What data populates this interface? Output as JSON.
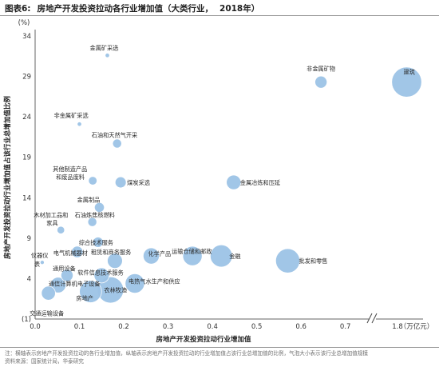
{
  "figure": {
    "label": "图表6:",
    "title": "房地产开发投资拉动各行业增加值（大类行业，",
    "year": "2018年）"
  },
  "notes": [
    "注：横轴表示房地产开发投资拉动的各行业增加值，纵轴表示房地产开发投资拉动的行业增加值占该行业总增加值的比例，气泡大小表示该行业总增加值规模",
    "资料来源：国家统计局，华泰研究"
  ],
  "chart_data": {
    "type": "scatter",
    "xlabel": "房地产开发投资拉动行业增加值",
    "x_unit": "（万亿元）",
    "ylabel": "房地产开发投资拉动行业增加值占该行业总增加值比例",
    "y_unit": "(%)",
    "xlim": [
      0,
      1.9
    ],
    "x_axis_break": [
      0.76,
      1.7
    ],
    "ylim": [
      -1,
      34
    ],
    "x_ticks": [
      "0.0",
      "0.1",
      "0.2",
      "0.3",
      "0.4",
      "0.5",
      "0.6",
      "0.7",
      "1.8"
    ],
    "y_ticks": [
      "(1)",
      "4",
      "9",
      "14",
      "19",
      "24",
      "29",
      "34"
    ],
    "bubble_color": "#9dc3e6",
    "points": [
      {
        "label": "金属矿采选",
        "x": 0.163,
        "y": 31.6,
        "size": 0.12
      },
      {
        "label": "非金属矿物",
        "x": 0.645,
        "y": 28.3,
        "size": 0.9
      },
      {
        "label": "建筑",
        "x": 1.85,
        "y": 28.3,
        "size": 5.5
      },
      {
        "label": "非金属矿采选",
        "x": 0.1,
        "y": 23.1,
        "size": 0.12
      },
      {
        "label": "石油和天然气开采",
        "x": 0.185,
        "y": 20.7,
        "size": 0.5
      },
      {
        "label": "其他制造产品和废品废料",
        "x": 0.13,
        "y": 16.1,
        "size": 0.45
      },
      {
        "label": "煤炭采选",
        "x": 0.193,
        "y": 15.9,
        "size": 0.75
      },
      {
        "label": "金属冶炼和压延",
        "x": 0.448,
        "y": 15.9,
        "size": 1.3
      },
      {
        "label": "金属制品",
        "x": 0.145,
        "y": 12.8,
        "size": 0.6
      },
      {
        "label": "木材加工品和家具",
        "x": 0.058,
        "y": 10.0,
        "size": 0.35
      },
      {
        "label": "石油炼焦核燃料",
        "x": 0.129,
        "y": 11.0,
        "size": 0.5
      },
      {
        "label": "综合技术服务",
        "x": 0.142,
        "y": 8.5,
        "size": 0.65
      },
      {
        "label": "仪器仪表",
        "x": 0.016,
        "y": 6.0,
        "size": 0.1
      },
      {
        "label": "电气机械器材",
        "x": 0.095,
        "y": 7.3,
        "size": 0.8
      },
      {
        "label": "化学产品",
        "x": 0.262,
        "y": 6.8,
        "size": 1.6
      },
      {
        "label": "运输仓储和邮政",
        "x": 0.355,
        "y": 6.8,
        "size": 2.3
      },
      {
        "label": "金融",
        "x": 0.42,
        "y": 6.8,
        "size": 3.0
      },
      {
        "label": "批发和零售",
        "x": 0.57,
        "y": 6.2,
        "size": 3.6
      },
      {
        "label": "租赁和商务服务",
        "x": 0.18,
        "y": 6.2,
        "size": 1.4
      },
      {
        "label": "通用设备",
        "x": 0.072,
        "y": 4.4,
        "size": 0.9
      },
      {
        "label": "软件信息技术服务",
        "x": 0.15,
        "y": 4.4,
        "size": 1.4
      },
      {
        "label": "电热气水生产和供应",
        "x": 0.225,
        "y": 3.4,
        "size": 2.3
      },
      {
        "label": "通信计算机电子设备",
        "x": 0.052,
        "y": 3.2,
        "size": 1.5
      },
      {
        "label": "农林牧渔",
        "x": 0.17,
        "y": 2.6,
        "size": 4.2
      },
      {
        "label": "房地产",
        "x": 0.125,
        "y": 2.4,
        "size": 3.0
      },
      {
        "label": "交通运输设备",
        "x": 0.03,
        "y": 2.2,
        "size": 1.2
      }
    ]
  }
}
